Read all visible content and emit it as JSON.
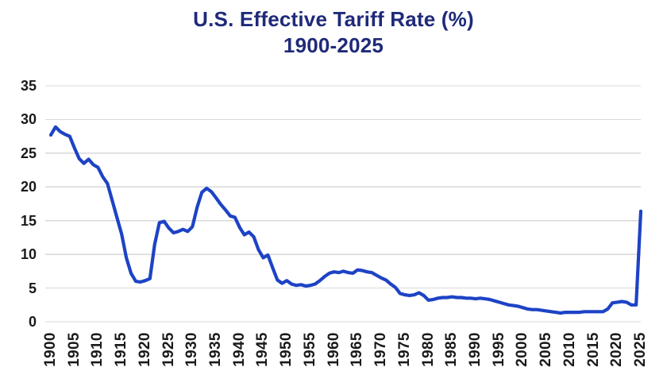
{
  "title": {
    "line1": "U.S. Effective Tariff Rate (%)",
    "line2": "1900-2025"
  },
  "colors": {
    "line": "#1d43c5",
    "title": "#1f2a7a",
    "tick_label": "#1a1a1a",
    "gridline": "#d8d8d8",
    "background": "#ffffff"
  },
  "y_axis": {
    "ticks": [
      35,
      30,
      25,
      20,
      15,
      10,
      5,
      0
    ],
    "min": 0,
    "max": 35
  },
  "x_axis": {
    "ticks": [
      1900,
      1905,
      1910,
      1915,
      1920,
      1925,
      1930,
      1935,
      1940,
      1945,
      1950,
      1955,
      1960,
      1965,
      1970,
      1975,
      1980,
      1985,
      1990,
      1995,
      2000,
      2005,
      2010,
      2015,
      2020,
      2025
    ]
  },
  "chart_data": {
    "type": "line",
    "title": "U.S. Effective Tariff Rate (%) 1900-2025",
    "xlabel": "",
    "ylabel": "",
    "xlim": [
      1900,
      2025
    ],
    "ylim": [
      0,
      35
    ],
    "grid": "horizontal",
    "legend": "none",
    "x": [
      1900,
      1901,
      1902,
      1903,
      1904,
      1905,
      1906,
      1907,
      1908,
      1909,
      1910,
      1911,
      1912,
      1913,
      1914,
      1915,
      1916,
      1917,
      1918,
      1919,
      1920,
      1921,
      1922,
      1923,
      1924,
      1925,
      1926,
      1927,
      1928,
      1929,
      1930,
      1931,
      1932,
      1933,
      1934,
      1935,
      1936,
      1937,
      1938,
      1939,
      1940,
      1941,
      1942,
      1943,
      1944,
      1945,
      1946,
      1947,
      1948,
      1949,
      1950,
      1951,
      1952,
      1953,
      1954,
      1955,
      1956,
      1957,
      1958,
      1959,
      1960,
      1961,
      1962,
      1963,
      1964,
      1965,
      1966,
      1967,
      1968,
      1969,
      1970,
      1971,
      1972,
      1973,
      1974,
      1975,
      1976,
      1977,
      1978,
      1979,
      1980,
      1981,
      1982,
      1983,
      1984,
      1985,
      1986,
      1987,
      1988,
      1989,
      1990,
      1991,
      1992,
      1993,
      1994,
      1995,
      1996,
      1997,
      1998,
      1999,
      2000,
      2001,
      2002,
      2003,
      2004,
      2005,
      2006,
      2007,
      2008,
      2009,
      2010,
      2011,
      2012,
      2013,
      2014,
      2015,
      2016,
      2017,
      2018,
      2019,
      2020,
      2021,
      2022,
      2023,
      2024,
      2025
    ],
    "series": [
      {
        "name": "U.S. effective tariff rate (%)",
        "values": [
          27.7,
          28.9,
          28.2,
          27.8,
          27.5,
          25.8,
          24.2,
          23.5,
          24.1,
          23.3,
          22.9,
          21.5,
          20.5,
          18.0,
          15.5,
          13.0,
          9.5,
          7.2,
          6.0,
          5.9,
          6.1,
          6.4,
          11.5,
          14.7,
          14.9,
          13.9,
          13.2,
          13.4,
          13.7,
          13.4,
          14.1,
          17.0,
          19.2,
          19.8,
          19.3,
          18.4,
          17.4,
          16.6,
          15.7,
          15.5,
          14.0,
          12.9,
          13.3,
          12.6,
          10.7,
          9.5,
          9.9,
          8.0,
          6.2,
          5.7,
          6.1,
          5.6,
          5.4,
          5.5,
          5.3,
          5.4,
          5.6,
          6.1,
          6.7,
          7.2,
          7.4,
          7.3,
          7.5,
          7.3,
          7.2,
          7.7,
          7.6,
          7.4,
          7.3,
          6.9,
          6.5,
          6.2,
          5.6,
          5.1,
          4.2,
          4.0,
          3.9,
          4.0,
          4.3,
          3.9,
          3.2,
          3.3,
          3.5,
          3.6,
          3.6,
          3.7,
          3.6,
          3.6,
          3.5,
          3.5,
          3.4,
          3.5,
          3.4,
          3.3,
          3.1,
          2.9,
          2.7,
          2.5,
          2.4,
          2.3,
          2.1,
          1.9,
          1.8,
          1.8,
          1.7,
          1.6,
          1.5,
          1.4,
          1.3,
          1.4,
          1.4,
          1.4,
          1.4,
          1.5,
          1.5,
          1.5,
          1.5,
          1.5,
          1.9,
          2.8,
          2.9,
          3.0,
          2.9,
          2.5,
          2.5,
          16.4
        ]
      }
    ]
  }
}
